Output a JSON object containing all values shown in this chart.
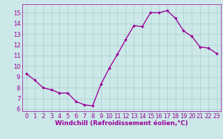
{
  "x": [
    0,
    1,
    2,
    3,
    4,
    5,
    6,
    7,
    8,
    9,
    10,
    11,
    12,
    13,
    14,
    15,
    16,
    17,
    18,
    19,
    20,
    21,
    22,
    23
  ],
  "y": [
    9.3,
    8.7,
    8.0,
    7.8,
    7.5,
    7.5,
    6.7,
    6.4,
    6.3,
    8.3,
    9.8,
    11.1,
    12.5,
    13.8,
    13.7,
    15.0,
    15.0,
    15.2,
    14.5,
    13.3,
    12.8,
    11.8,
    11.7,
    11.2
  ],
  "line_color": "#990099",
  "marker": "D",
  "markersize": 2.0,
  "linewidth": 1.0,
  "bg_color": "#cce8e8",
  "grid_color": "#aacccc",
  "tick_color": "#990099",
  "label_color": "#990099",
  "xlabel": "Windchill (Refroidissement éolien,°C)",
  "ylabel": "",
  "xlim": [
    -0.5,
    23.5
  ],
  "ylim": [
    5.8,
    15.8
  ],
  "yticks": [
    6,
    7,
    8,
    9,
    10,
    11,
    12,
    13,
    14,
    15
  ],
  "xticks": [
    0,
    1,
    2,
    3,
    4,
    5,
    6,
    7,
    8,
    9,
    10,
    11,
    12,
    13,
    14,
    15,
    16,
    17,
    18,
    19,
    20,
    21,
    22,
    23
  ],
  "xlabel_fontsize": 6.5,
  "tick_fontsize": 6.0,
  "title": ""
}
